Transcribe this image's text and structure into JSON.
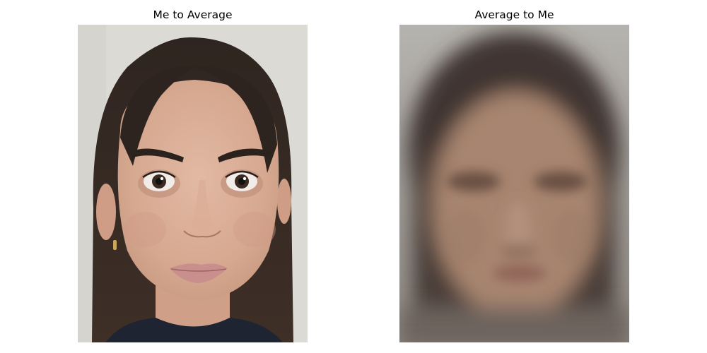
{
  "panels": {
    "left": {
      "title": "Me to Average",
      "image": "photo-face",
      "background_color": "#dcdad4"
    },
    "right": {
      "title": "Average to Me",
      "image": "blurred-average-face",
      "background_color": "#aeaba6"
    }
  },
  "colors": {
    "skin": "#d9ad96",
    "hair": "#3a2c25",
    "lips": "#c98f8c",
    "shirt": "#1f2433",
    "avg_skin": "#a88570",
    "avg_hair": "#3f3530"
  }
}
